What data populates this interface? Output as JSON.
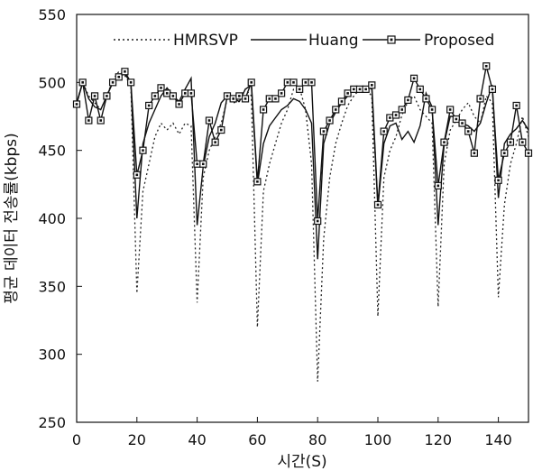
{
  "chart_data": {
    "type": "line",
    "xlabel": "시간(S)",
    "ylabel": "평균 데이터 전송률(kbps)",
    "xlim": [
      0,
      150
    ],
    "ylim": [
      250,
      550
    ],
    "x_ticks": [
      "0",
      "20",
      "40",
      "60",
      "80",
      "100",
      "120",
      "140"
    ],
    "y_ticks": [
      "250",
      "300",
      "350",
      "400",
      "450",
      "500",
      "550"
    ],
    "grid": false,
    "legend_position": "top",
    "series": [
      {
        "name": "HMRSVP",
        "style": "dotted",
        "color": "#222222",
        "x": [
          0,
          2,
          4,
          6,
          8,
          10,
          12,
          14,
          16,
          18,
          20,
          22,
          24,
          26,
          28,
          30,
          32,
          34,
          36,
          38,
          40,
          42,
          44,
          46,
          48,
          50,
          52,
          54,
          56,
          58,
          60,
          62,
          64,
          66,
          68,
          70,
          72,
          74,
          76,
          78,
          80,
          82,
          84,
          86,
          88,
          90,
          92,
          94,
          96,
          98,
          100,
          102,
          104,
          106,
          108,
          110,
          112,
          114,
          116,
          118,
          120,
          122,
          124,
          126,
          128,
          130,
          132,
          134,
          136,
          138,
          140,
          142,
          144,
          146,
          148,
          150
        ],
        "values": [
          485,
          500,
          490,
          485,
          480,
          490,
          502,
          508,
          505,
          498,
          345,
          420,
          440,
          460,
          470,
          465,
          470,
          462,
          470,
          468,
          338,
          430,
          450,
          460,
          470,
          488,
          485,
          486,
          495,
          490,
          320,
          420,
          440,
          455,
          470,
          480,
          495,
          496,
          480,
          440,
          280,
          385,
          430,
          455,
          470,
          483,
          490,
          495,
          495,
          490,
          328,
          430,
          450,
          460,
          476,
          486,
          490,
          480,
          475,
          470,
          335,
          440,
          465,
          472,
          480,
          485,
          475,
          470,
          490,
          485,
          342,
          410,
          440,
          455,
          475,
          460
        ]
      },
      {
        "name": "Huang",
        "style": "solid",
        "color": "#111111",
        "x": [
          0,
          2,
          4,
          6,
          8,
          10,
          12,
          14,
          16,
          18,
          20,
          22,
          24,
          26,
          28,
          30,
          32,
          34,
          36,
          38,
          40,
          42,
          44,
          46,
          48,
          50,
          52,
          54,
          56,
          58,
          60,
          62,
          64,
          66,
          68,
          70,
          72,
          74,
          76,
          78,
          80,
          82,
          84,
          86,
          88,
          90,
          92,
          94,
          96,
          98,
          100,
          102,
          104,
          106,
          108,
          110,
          112,
          114,
          116,
          118,
          120,
          122,
          124,
          126,
          128,
          130,
          132,
          134,
          136,
          138,
          140,
          142,
          144,
          146,
          148,
          150
        ],
        "values": [
          485,
          500,
          488,
          482,
          480,
          490,
          500,
          505,
          506,
          500,
          400,
          455,
          470,
          480,
          490,
          496,
          490,
          486,
          495,
          503,
          395,
          438,
          460,
          470,
          485,
          490,
          488,
          486,
          495,
          498,
          425,
          455,
          468,
          474,
          480,
          483,
          488,
          486,
          480,
          470,
          370,
          455,
          470,
          478,
          485,
          490,
          495,
          497,
          497,
          495,
          408,
          455,
          468,
          470,
          458,
          464,
          456,
          468,
          492,
          482,
          395,
          455,
          475,
          475,
          470,
          468,
          464,
          470,
          485,
          498,
          415,
          455,
          462,
          466,
          472,
          465
        ]
      },
      {
        "name": "Proposed",
        "style": "solid-square-markers",
        "color": "#111111",
        "x": [
          0,
          2,
          4,
          6,
          8,
          10,
          12,
          14,
          16,
          18,
          20,
          22,
          24,
          26,
          28,
          30,
          32,
          34,
          36,
          38,
          40,
          42,
          44,
          46,
          48,
          50,
          52,
          54,
          56,
          58,
          60,
          62,
          64,
          66,
          68,
          70,
          72,
          74,
          76,
          78,
          80,
          82,
          84,
          86,
          88,
          90,
          92,
          94,
          96,
          98,
          100,
          102,
          104,
          106,
          108,
          110,
          112,
          114,
          116,
          118,
          120,
          122,
          124,
          126,
          128,
          130,
          132,
          134,
          136,
          138,
          140,
          142,
          144,
          146,
          148,
          150
        ],
        "values": [
          484,
          500,
          472,
          490,
          472,
          490,
          500,
          504,
          508,
          500,
          432,
          450,
          483,
          490,
          496,
          492,
          490,
          484,
          492,
          492,
          440,
          440,
          472,
          456,
          465,
          490,
          488,
          490,
          488,
          500,
          427,
          480,
          488,
          488,
          492,
          500,
          500,
          495,
          500,
          500,
          398,
          464,
          472,
          480,
          486,
          492,
          495,
          495,
          495,
          498,
          410,
          464,
          474,
          476,
          480,
          487,
          503,
          495,
          488,
          480,
          424,
          456,
          480,
          473,
          470,
          464,
          448,
          488,
          512,
          495,
          428,
          448,
          456,
          483,
          456,
          448
        ]
      }
    ]
  }
}
